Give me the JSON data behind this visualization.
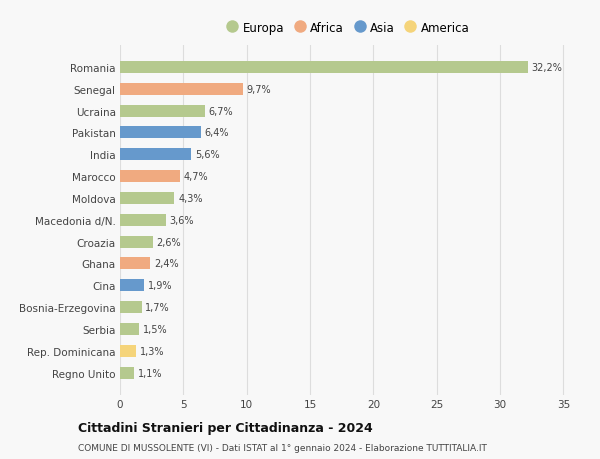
{
  "categories": [
    "Romania",
    "Senegal",
    "Ucraina",
    "Pakistan",
    "India",
    "Marocco",
    "Moldova",
    "Macedonia d/N.",
    "Croazia",
    "Ghana",
    "Cina",
    "Bosnia-Erzegovina",
    "Serbia",
    "Rep. Dominicana",
    "Regno Unito"
  ],
  "values": [
    32.2,
    9.7,
    6.7,
    6.4,
    5.6,
    4.7,
    4.3,
    3.6,
    2.6,
    2.4,
    1.9,
    1.7,
    1.5,
    1.3,
    1.1
  ],
  "labels": [
    "32,2%",
    "9,7%",
    "6,7%",
    "6,4%",
    "5,6%",
    "4,7%",
    "4,3%",
    "3,6%",
    "2,6%",
    "2,4%",
    "1,9%",
    "1,7%",
    "1,5%",
    "1,3%",
    "1,1%"
  ],
  "continents": [
    "Europa",
    "Africa",
    "Europa",
    "Asia",
    "Asia",
    "Africa",
    "Europa",
    "Europa",
    "Europa",
    "Africa",
    "Asia",
    "Europa",
    "Europa",
    "America",
    "Europa"
  ],
  "colors": {
    "Europa": "#b5c98e",
    "Africa": "#f0aa80",
    "Asia": "#6699cc",
    "America": "#f5d47a"
  },
  "legend_order": [
    "Europa",
    "Africa",
    "Asia",
    "America"
  ],
  "title": "Cittadini Stranieri per Cittadinanza - 2024",
  "subtitle": "COMUNE DI MUSSOLENTE (VI) - Dati ISTAT al 1° gennaio 2024 - Elaborazione TUTTITALIA.IT",
  "xlim": [
    0,
    36
  ],
  "xticks": [
    0,
    5,
    10,
    15,
    20,
    25,
    30,
    35
  ],
  "background_color": "#f8f8f8",
  "grid_color": "#dddddd",
  "bar_height": 0.55
}
